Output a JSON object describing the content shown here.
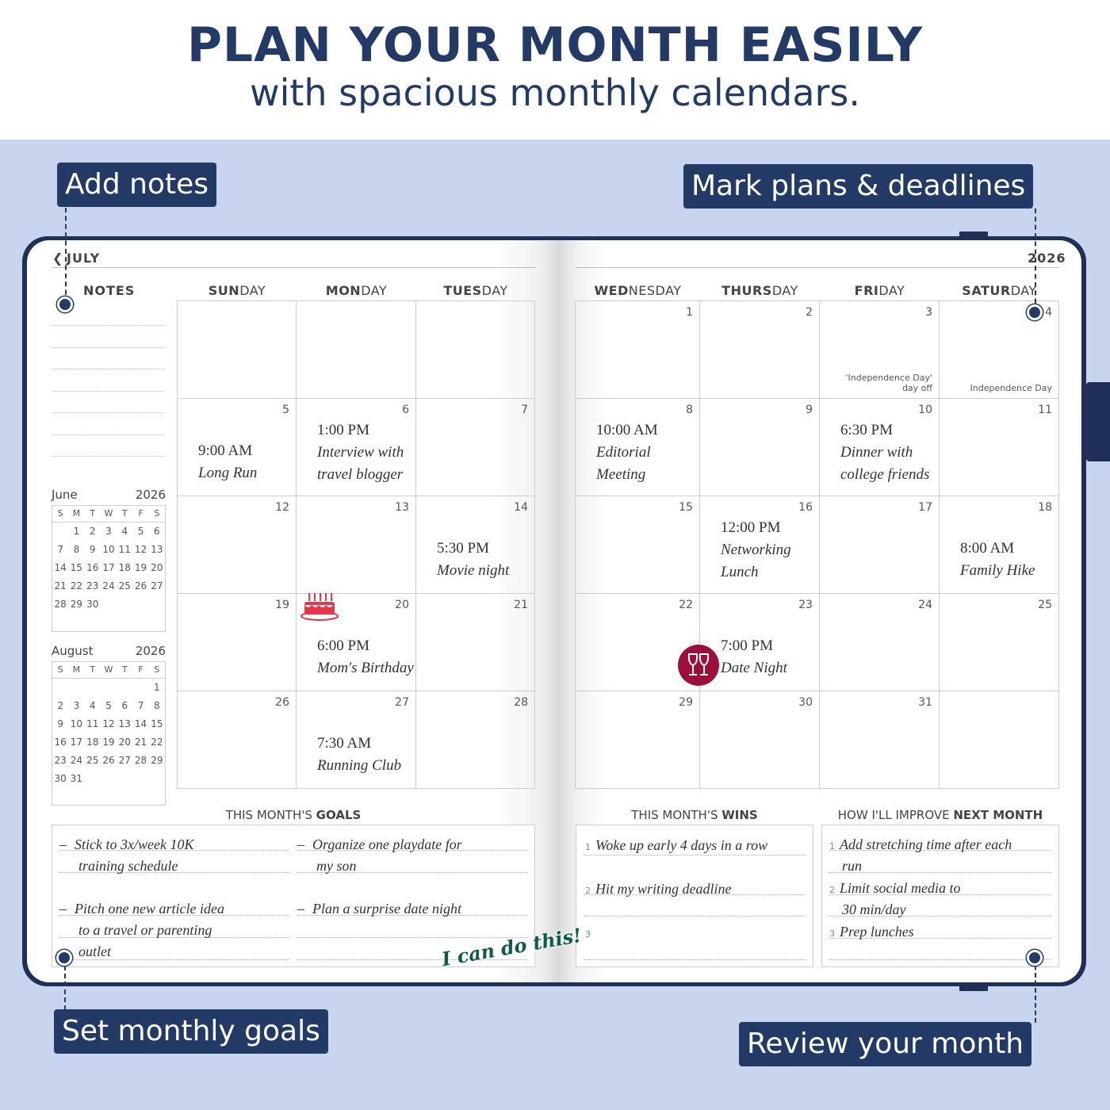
{
  "header": {
    "title": "PLAN YOUR MONTH EASILY",
    "subtitle": "with spacious monthly calendars."
  },
  "callouts": {
    "add_notes": "Add notes",
    "mark_plans": "Mark plans & deadlines",
    "set_goals": "Set monthly goals",
    "review": "Review your month"
  },
  "colors": {
    "navy": "#243a66",
    "background": "#c9d5ef",
    "sticker_wine": "#9b0f3a",
    "sticker_cake": "#e0394a",
    "sticker_text": "#0f5a4a"
  },
  "planner": {
    "month": "JULY",
    "year": "2026",
    "notes_label": "NOTES",
    "left_days": [
      {
        "bold": "SUN",
        "rest": "DAY"
      },
      {
        "bold": "MON",
        "rest": "DAY"
      },
      {
        "bold": "TUES",
        "rest": "DAY"
      }
    ],
    "right_days": [
      {
        "bold": "WED",
        "rest": "NESDAY"
      },
      {
        "bold": "THURS",
        "rest": "DAY"
      },
      {
        "bold": "FRI",
        "rest": "DAY"
      },
      {
        "bold": "SATUR",
        "rest": "DAY"
      }
    ],
    "left_cells": [
      [
        {},
        {},
        {}
      ],
      [
        {
          "day": "5",
          "lines": [
            "9:00 AM",
            "Long Run"
          ]
        },
        {
          "day": "6",
          "lines": [
            "1:00 PM",
            "Interview with",
            "travel blogger"
          ]
        },
        {
          "day": "7"
        }
      ],
      [
        {
          "day": "12"
        },
        {
          "day": "13"
        },
        {
          "day": "14",
          "lines": [
            "5:30 PM",
            "Movie night"
          ]
        }
      ],
      [
        {
          "day": "19"
        },
        {
          "day": "20",
          "lines": [
            "6:00 PM",
            "Mom's Birthday"
          ],
          "sticker": "birthday-cake"
        },
        {
          "day": "21"
        }
      ],
      [
        {
          "day": "26"
        },
        {
          "day": "27",
          "lines": [
            "7:30 AM",
            "Running Club"
          ]
        },
        {
          "day": "28"
        }
      ]
    ],
    "right_cells": [
      [
        {
          "day": "1"
        },
        {
          "day": "2"
        },
        {
          "day": "3",
          "note": "'Independence Day' day off"
        },
        {
          "day": "4",
          "note": "Independence Day"
        }
      ],
      [
        {
          "day": "8",
          "lines": [
            "10:00 AM",
            "Editorial",
            "Meeting"
          ]
        },
        {
          "day": "9"
        },
        {
          "day": "10",
          "lines": [
            "6:30 PM",
            "Dinner with",
            "college friends"
          ]
        },
        {
          "day": "11"
        }
      ],
      [
        {
          "day": "15"
        },
        {
          "day": "16",
          "lines": [
            "12:00 PM",
            "Networking",
            "Lunch"
          ]
        },
        {
          "day": "17"
        },
        {
          "day": "18",
          "lines": [
            "8:00 AM",
            "Family Hike"
          ]
        }
      ],
      [
        {
          "day": "22"
        },
        {
          "day": "23",
          "lines": [
            "7:00 PM",
            "Date Night"
          ],
          "sticker": "wine-glasses"
        },
        {
          "day": "24"
        },
        {
          "day": "25"
        }
      ],
      [
        {
          "day": "29"
        },
        {
          "day": "30"
        },
        {
          "day": "31"
        },
        {}
      ]
    ],
    "mini_calendars": [
      {
        "month": "June",
        "year": "2026",
        "weekdays": [
          "S",
          "M",
          "T",
          "W",
          "T",
          "F",
          "S"
        ],
        "weeks": [
          [
            "",
            "1",
            "2",
            "3",
            "4",
            "5",
            "6"
          ],
          [
            "7",
            "8",
            "9",
            "10",
            "11",
            "12",
            "13"
          ],
          [
            "14",
            "15",
            "16",
            "17",
            "18",
            "19",
            "20"
          ],
          [
            "21",
            "22",
            "23",
            "24",
            "25",
            "26",
            "27"
          ],
          [
            "28",
            "29",
            "30",
            "",
            "",
            "",
            ""
          ]
        ]
      },
      {
        "month": "August",
        "year": "2026",
        "weekdays": [
          "S",
          "M",
          "T",
          "W",
          "T",
          "F",
          "S"
        ],
        "weeks": [
          [
            "",
            "",
            "",
            "",
            "",
            "",
            "1"
          ],
          [
            "2",
            "3",
            "4",
            "5",
            "6",
            "7",
            "8"
          ],
          [
            "9",
            "10",
            "11",
            "12",
            "13",
            "14",
            "15"
          ],
          [
            "16",
            "17",
            "18",
            "19",
            "20",
            "21",
            "22"
          ],
          [
            "23",
            "24",
            "25",
            "26",
            "27",
            "28",
            "29"
          ],
          [
            "30",
            "31",
            "",
            "",
            "",
            "",
            ""
          ]
        ]
      }
    ],
    "goals": {
      "heading_pre": "THIS MONTH'S ",
      "heading_bold": "GOALS",
      "items": [
        [
          "Stick to 3x/week 10K",
          "training schedule"
        ],
        [
          "Organize one playdate for",
          "my son"
        ],
        [
          "Pitch one new article idea",
          "to a travel or parenting",
          "outlet"
        ],
        [
          "Plan a surprise date night"
        ]
      ],
      "bullet": "–",
      "sticker": "I can do this!"
    },
    "wins": {
      "heading_pre": "THIS MONTH'S ",
      "heading_bold": "WINS",
      "items": [
        [
          "Woke up early 4 days in a row"
        ],
        [
          "Hit my writing deadline"
        ],
        []
      ]
    },
    "improve": {
      "heading_pre": "HOW I'LL IMPROVE ",
      "heading_bold": "NEXT MONTH",
      "items": [
        [
          "Add stretching time after each",
          "run"
        ],
        [
          "Limit social media to",
          "30 min/day"
        ],
        [
          "Prep lunches"
        ]
      ]
    }
  }
}
